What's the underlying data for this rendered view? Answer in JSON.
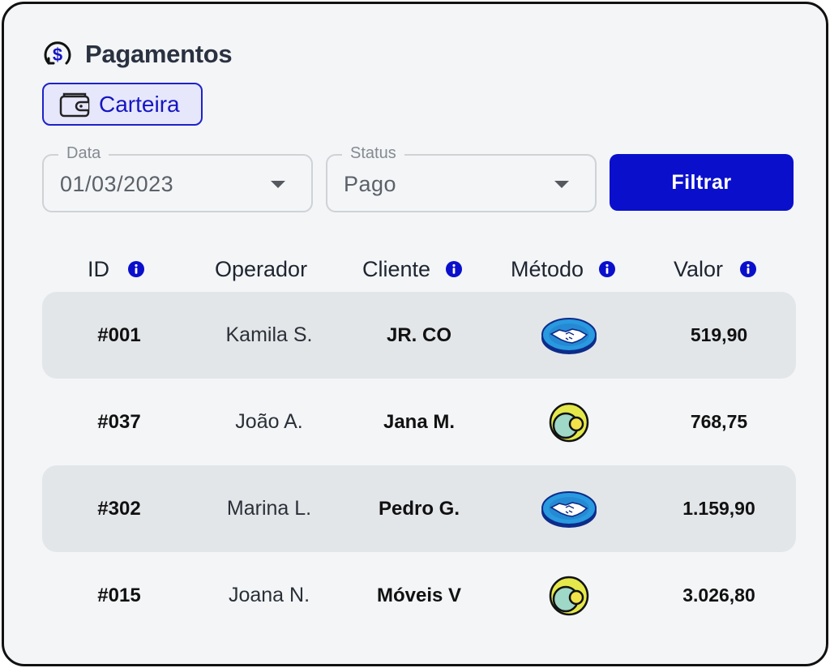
{
  "header": {
    "title": "Pagamentos"
  },
  "chip": {
    "label": "Carteira"
  },
  "filters": {
    "date": {
      "legend": "Data",
      "value": "01/03/2023"
    },
    "status": {
      "legend": "Status",
      "value": "Pago"
    },
    "button_label": "Filtrar"
  },
  "table": {
    "columns": [
      "ID",
      "Operador",
      "Cliente",
      "Método",
      "Valor"
    ],
    "rows": [
      {
        "id": "#001",
        "operador": "Kamila S.",
        "cliente": "JR. CO",
        "metodo": "handshake-icon",
        "valor": "519,90"
      },
      {
        "id": "#037",
        "operador": "João A.",
        "cliente": "Jana M.",
        "metodo": "circle-logo-icon",
        "valor": "768,75"
      },
      {
        "id": "#302",
        "operador": "Marina L.",
        "cliente": "Pedro G.",
        "metodo": "handshake-icon",
        "valor": "1.159,90"
      },
      {
        "id": "#015",
        "operador": "Joana N.",
        "cliente": "Móveis V",
        "metodo": "circle-logo-icon",
        "valor": "3.026,80"
      }
    ]
  },
  "colors": {
    "accent": "#0a0fcc",
    "chip_bg": "#e6e7fb",
    "row_shade": "#e3e6e9",
    "page_bg": "#f3f5f7"
  }
}
